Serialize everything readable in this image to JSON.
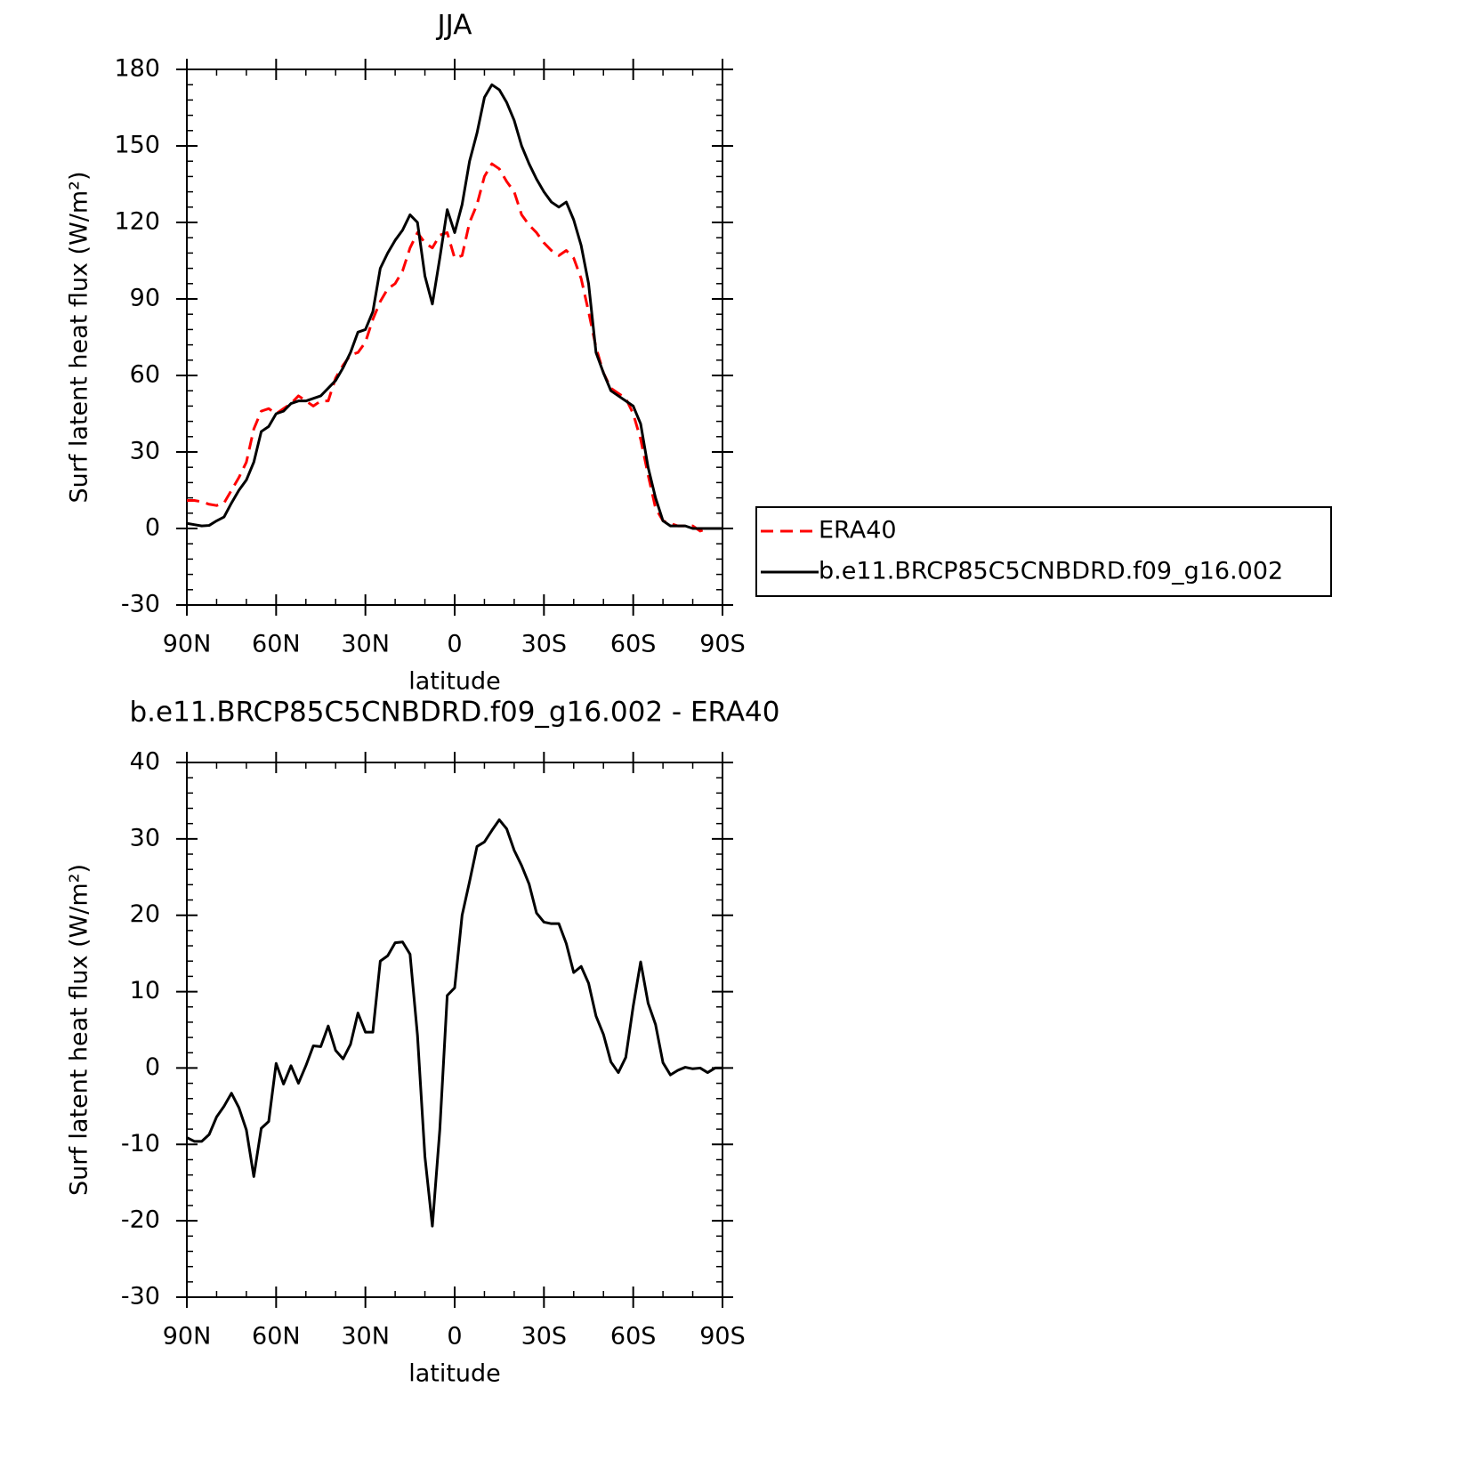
{
  "chart_data": [
    {
      "type": "line",
      "title": "JJA",
      "xlabel": "latitude",
      "ylabel": "Surf latent heat flux (W/m²)",
      "xlim": [
        90,
        -90
      ],
      "xticks": [
        {
          "value": 90,
          "label": "90N"
        },
        {
          "value": 60,
          "label": "60N"
        },
        {
          "value": 30,
          "label": "30N"
        },
        0,
        {
          "value": -30,
          "label": "30S"
        },
        {
          "value": -60,
          "label": "60S"
        },
        {
          "value": -90,
          "label": "90S"
        }
      ],
      "ylim": [
        -30,
        180
      ],
      "yticks": [
        -30,
        0,
        30,
        60,
        90,
        120,
        150,
        180
      ],
      "legend": "right",
      "x": [
        90,
        87.5,
        85,
        82.5,
        80,
        77.5,
        75,
        72.5,
        70,
        67.5,
        65,
        62.5,
        60,
        57.5,
        55,
        52.5,
        50,
        47.5,
        45,
        42.5,
        40,
        37.5,
        35,
        32.5,
        30,
        27.5,
        25,
        22.5,
        20,
        17.5,
        15,
        12.5,
        10,
        7.5,
        5,
        2.5,
        0,
        -2.5,
        -5,
        -7.5,
        -10,
        -12.5,
        -15,
        -17.5,
        -20,
        -22.5,
        -25,
        -27.5,
        -30,
        -32.5,
        -35,
        -37.5,
        -40,
        -42.5,
        -45,
        -47.5,
        -50,
        -52.5,
        -55,
        -57.5,
        -60,
        -62.5,
        -65,
        -67.5,
        -70,
        -72.5,
        -75,
        -77.5,
        -80,
        -82.5,
        -85,
        -87.5,
        -90
      ],
      "series": [
        {
          "name": "ERA40",
          "color": "#ff0000",
          "dash": "dashed",
          "values": [
            11,
            11,
            10.5,
            9.5,
            9,
            10,
            15,
            20,
            26,
            39,
            46,
            47,
            45,
            47,
            49,
            52,
            50,
            48,
            50,
            50,
            59,
            64,
            68,
            69,
            73,
            82,
            89,
            94,
            96,
            101,
            110,
            116,
            112,
            110,
            115,
            116,
            106,
            107,
            120,
            127,
            138,
            143,
            141,
            136,
            132,
            123,
            119,
            116,
            112,
            109,
            107,
            109,
            106,
            98,
            85,
            71,
            61,
            55,
            53,
            51,
            45,
            35,
            21,
            8,
            3,
            2,
            1,
            1,
            1,
            -1,
            0,
            0,
            0
          ]
        },
        {
          "name": "b.e11.BRCP85C5CNBDRD.f09_g16.002",
          "color": "#000000",
          "dash": "solid",
          "values": [
            2,
            1.5,
            1,
            1.2,
            3,
            4.5,
            10,
            15,
            19,
            26,
            38,
            40,
            45,
            46,
            49,
            50,
            50,
            51,
            52,
            55,
            58,
            63,
            69,
            77,
            78,
            85,
            102,
            108,
            113,
            117,
            123,
            120,
            99,
            88,
            106,
            125,
            116,
            127,
            144,
            155,
            169,
            174,
            172,
            167,
            160,
            150,
            143,
            137,
            132,
            128,
            126,
            128,
            121,
            111,
            96,
            69,
            61,
            54,
            52,
            50,
            48,
            41,
            24,
            12,
            3,
            1,
            1,
            1,
            0,
            0,
            0,
            0,
            0
          ]
        }
      ]
    },
    {
      "type": "line",
      "title": "b.e11.BRCP85C5CNBDRD.f09_g16.002 - ERA40",
      "xlabel": "latitude",
      "ylabel": "Surf latent heat flux (W/m²)",
      "xlim": [
        90,
        -90
      ],
      "xticks": [
        {
          "value": 90,
          "label": "90N"
        },
        {
          "value": 60,
          "label": "60N"
        },
        {
          "value": 30,
          "label": "30N"
        },
        0,
        {
          "value": -30,
          "label": "30S"
        },
        {
          "value": -60,
          "label": "60S"
        },
        {
          "value": -90,
          "label": "90S"
        }
      ],
      "ylim": [
        -30,
        40
      ],
      "yticks": [
        -30,
        -20,
        -10,
        0,
        10,
        20,
        30,
        40
      ],
      "color": "#000000",
      "x": [
        90,
        87.5,
        85,
        82.5,
        80,
        77.5,
        75,
        72.5,
        70,
        67.5,
        65,
        62.5,
        60,
        57.5,
        55,
        52.5,
        50,
        47.5,
        45,
        42.5,
        40,
        37.5,
        35,
        32.5,
        30,
        27.5,
        25,
        22.5,
        20,
        17.5,
        15,
        12.5,
        10,
        7.5,
        5,
        2.5,
        0,
        -2.5,
        -5,
        -7.5,
        -10,
        -12.5,
        -15,
        -17.5,
        -20,
        -22.5,
        -25,
        -27.5,
        -30,
        -32.5,
        -35,
        -37.5,
        -40,
        -42.5,
        -45,
        -47.5,
        -50,
        -52.5,
        -55,
        -57.5,
        -60,
        -62.5,
        -65,
        -67.5,
        -70,
        -72.5,
        -75,
        -77.5,
        -80,
        -82.5,
        -85,
        -87.5,
        -90
      ],
      "values": [
        -9.1,
        -9.6,
        -9.6,
        -8.7,
        -6.4,
        -5,
        -3.3,
        -5.2,
        -8.1,
        -14.2,
        -7.9,
        -7,
        0.6,
        -2.1,
        0.3,
        -2,
        0.3,
        2.9,
        2.8,
        5.5,
        2.3,
        1.2,
        3.1,
        7.2,
        4.7,
        4.7,
        14,
        14.7,
        16.4,
        16.5,
        14.9,
        4.3,
        -11.6,
        -20.7,
        -8.1,
        9.5,
        10.5,
        20,
        24.4,
        29,
        29.6,
        31.1,
        32.5,
        31.3,
        28.5,
        26.5,
        24.1,
        20.3,
        19.1,
        18.9,
        18.9,
        16.3,
        12.5,
        13.3,
        11.1,
        6.8,
        4.4,
        0.8,
        -0.6,
        1.4,
        8.1,
        13.9,
        8.5,
        5.7,
        0.7,
        -0.9,
        -0.3,
        0.1,
        -0.1,
        0,
        -0.6,
        0,
        0
      ]
    }
  ]
}
